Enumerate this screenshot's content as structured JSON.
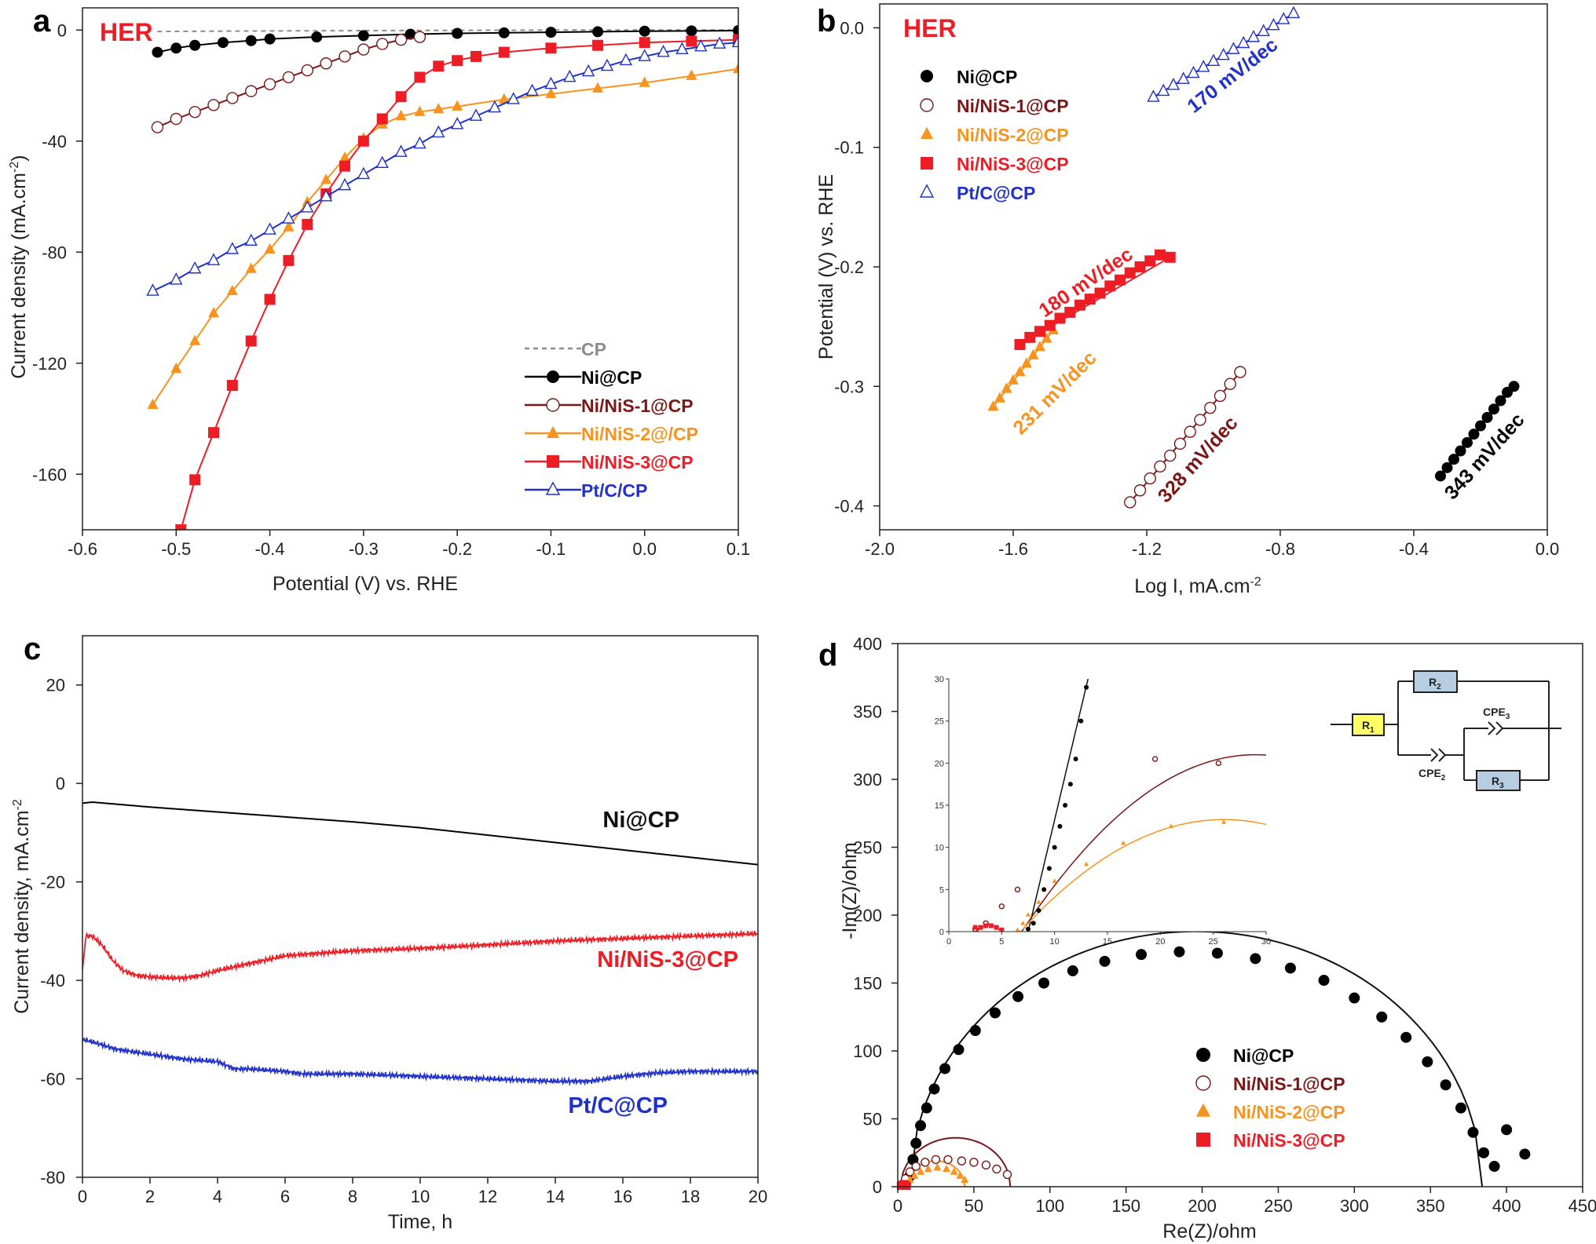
{
  "panels": {
    "a": {
      "letter": "a",
      "tag": "HER",
      "xlabel": "Potential (V) vs. RHE",
      "ylabel": "Current density (mA.cm",
      "ylabel_sup": "-2",
      "ylabel_close": ")",
      "xticks": [
        "-0.6",
        "-0.5",
        "-0.4",
        "-0.3",
        "-0.2",
        "-0.1",
        "0.0",
        "0.1"
      ],
      "yticks": [
        "0",
        "-40",
        "-80",
        "-120",
        "-160"
      ],
      "legend": [
        "CP",
        "Ni@CP",
        "Ni/NiS-1@CP",
        "Ni/NiS-2@/CP",
        "Ni/NiS-3@CP",
        "Pt/C/CP"
      ]
    },
    "b": {
      "letter": "b",
      "tag": "HER",
      "xlabel": "Log I, mA.cm",
      "xlabel_sup": "-2",
      "ylabel": "Potential (V) vs. RHE",
      "xticks": [
        "-2.0",
        "-1.6",
        "-1.2",
        "-0.8",
        "-0.4",
        "0.0"
      ],
      "yticks": [
        "0.0",
        "-0.1",
        "-0.2",
        "-0.3",
        "-0.4"
      ],
      "legend": [
        "Ni@CP",
        "Ni/NiS-1@CP",
        "Ni/NiS-2@CP",
        "Ni/NiS-3@CP",
        "Pt/C@CP"
      ],
      "slopes": [
        "170 mV/dec",
        "180 mV/dec",
        "231 mV/dec",
        "328 mV/dec",
        "343 mV/dec"
      ]
    },
    "c": {
      "letter": "c",
      "xlabel": "Time, h",
      "ylabel": "Current density, mA.cm",
      "ylabel_sup": "-2",
      "xticks": [
        "0",
        "2",
        "4",
        "6",
        "8",
        "10",
        "12",
        "14",
        "16",
        "18",
        "20"
      ],
      "yticks": [
        "20",
        "0",
        "-20",
        "-40",
        "-60",
        "-80"
      ],
      "labels": [
        "Ni@CP",
        "Ni/NiS-3@CP",
        "Pt/C@CP"
      ]
    },
    "d": {
      "letter": "d",
      "xlabel": "Re(Z)/ohm",
      "ylabel": "-Im(Z)/ohm",
      "xticks": [
        "0",
        "50",
        "100",
        "150",
        "200",
        "250",
        "300",
        "350",
        "400",
        "450"
      ],
      "yticks": [
        "0",
        "50",
        "100",
        "150",
        "200",
        "250",
        "300",
        "350",
        "400"
      ],
      "legend": [
        "Ni@CP",
        "Ni/NiS-1@CP",
        "Ni/NiS-2@CP",
        "Ni/NiS-3@CP"
      ],
      "inset_xticks": [
        "0",
        "5",
        "10",
        "15",
        "20",
        "25",
        "30"
      ],
      "inset_yticks": [
        "0",
        "5",
        "10",
        "15",
        "20",
        "25",
        "30"
      ],
      "circuit": {
        "r1": "R",
        "r1_sub": "1",
        "r2": "R",
        "r2_sub": "2",
        "r3": "R",
        "r3_sub": "3",
        "cpe2": "CPE",
        "cpe2_sub": "2",
        "cpe3": "CPE",
        "cpe3_sub": "3"
      }
    }
  },
  "colors": {
    "cp": "#8c8c8c",
    "ni": "#000000",
    "nis1": "#7a1717",
    "nis2": "#f7931e",
    "nis3": "#ee1c24",
    "ptc": "#1f31c9",
    "her": "#ee1c24",
    "axis": "#222222"
  },
  "chart_data": [
    {
      "panel": "a",
      "type": "line",
      "title": "HER",
      "xlabel": "Potential (V) vs. RHE",
      "ylabel": "Current density (mA.cm-2)",
      "xlim": [
        -0.6,
        0.1
      ],
      "ylim": [
        -180,
        8
      ],
      "legend_position": "bottom-right",
      "series": [
        {
          "name": "CP",
          "style": "dashed",
          "x": [
            -0.52,
            -0.4,
            -0.3,
            -0.2,
            -0.1,
            0.0,
            0.1
          ],
          "y": [
            -0.5,
            -0.3,
            -0.2,
            -0.1,
            0,
            0,
            0
          ]
        },
        {
          "name": "Ni@CP",
          "x": [
            -0.52,
            -0.5,
            -0.48,
            -0.45,
            -0.42,
            -0.4,
            -0.35,
            -0.3,
            -0.25,
            -0.2,
            -0.15,
            -0.1,
            -0.05,
            0.0,
            0.05,
            0.1
          ],
          "y": [
            -8,
            -6.5,
            -5.5,
            -4.5,
            -3.8,
            -3.2,
            -2.5,
            -2,
            -1.5,
            -1.2,
            -1,
            -0.8,
            -0.6,
            -0.4,
            -0.3,
            -0.2
          ]
        },
        {
          "name": "Ni/NiS-1@CP",
          "x": [
            -0.52,
            -0.5,
            -0.48,
            -0.46,
            -0.44,
            -0.42,
            -0.4,
            -0.38,
            -0.36,
            -0.34,
            -0.32,
            -0.3,
            -0.28,
            -0.26,
            -0.24
          ],
          "y": [
            -35,
            -32,
            -29.5,
            -27,
            -24.5,
            -22,
            -19.5,
            -17,
            -14.5,
            -12,
            -9.5,
            -7,
            -5,
            -3.5,
            -2.5
          ]
        },
        {
          "name": "Ni/NiS-2@/CP",
          "x": [
            -0.525,
            -0.5,
            -0.48,
            -0.46,
            -0.44,
            -0.42,
            -0.4,
            -0.38,
            -0.36,
            -0.34,
            -0.32,
            -0.3,
            -0.28,
            -0.26,
            -0.24,
            -0.22,
            -0.2,
            -0.15,
            -0.1,
            -0.05,
            0.0,
            0.05,
            0.1
          ],
          "y": [
            -135,
            -122,
            -112,
            -102,
            -94,
            -86,
            -79,
            -71,
            -62,
            -54,
            -46,
            -39,
            -34,
            -31,
            -29.5,
            -28.5,
            -27.5,
            -25,
            -23,
            -21,
            -19,
            -16.5,
            -14
          ]
        },
        {
          "name": "Ni/NiS-3@CP",
          "x": [
            -0.495,
            -0.48,
            -0.46,
            -0.44,
            -0.42,
            -0.4,
            -0.38,
            -0.36,
            -0.34,
            -0.32,
            -0.3,
            -0.28,
            -0.26,
            -0.24,
            -0.22,
            -0.2,
            -0.18,
            -0.15,
            -0.1,
            -0.05,
            0.0,
            0.05,
            0.1
          ],
          "y": [
            -180,
            -162,
            -145,
            -128,
            -112,
            -97,
            -83,
            -70,
            -59,
            -49,
            -40,
            -32,
            -24,
            -17,
            -13,
            -11,
            -9.5,
            -8,
            -6.5,
            -5.5,
            -4.5,
            -4,
            -3.5
          ]
        },
        {
          "name": "Pt/C/CP",
          "x": [
            -0.525,
            -0.5,
            -0.48,
            -0.46,
            -0.44,
            -0.42,
            -0.4,
            -0.38,
            -0.36,
            -0.34,
            -0.32,
            -0.3,
            -0.28,
            -0.26,
            -0.24,
            -0.22,
            -0.2,
            -0.18,
            -0.16,
            -0.14,
            -0.12,
            -0.1,
            -0.08,
            -0.06,
            -0.04,
            -0.02,
            0.0,
            0.02,
            0.04,
            0.06,
            0.08,
            0.1
          ],
          "y": [
            -94,
            -90,
            -86,
            -83,
            -79,
            -76,
            -72,
            -68,
            -64,
            -60,
            -56,
            -52,
            -48,
            -44,
            -41,
            -37,
            -34,
            -31,
            -28,
            -25,
            -22,
            -19.5,
            -17,
            -15,
            -13,
            -11,
            -9.5,
            -8,
            -7,
            -6,
            -5,
            -4.5
          ]
        }
      ]
    },
    {
      "panel": "b",
      "type": "scatter",
      "title": "HER",
      "xlabel": "Log I, mA.cm-2",
      "ylabel": "Potential (V) vs. RHE",
      "xlim": [
        -2.0,
        0.0
      ],
      "ylim": [
        -0.42,
        0.02
      ],
      "legend_position": "top-left",
      "series": [
        {
          "name": "Ni@CP",
          "slope_label": "343 mV/dec",
          "x": [
            -0.32,
            -0.3,
            -0.28,
            -0.26,
            -0.24,
            -0.22,
            -0.2,
            -0.18,
            -0.16,
            -0.14,
            -0.12,
            -0.1
          ],
          "y": [
            -0.375,
            -0.368,
            -0.361,
            -0.354,
            -0.347,
            -0.34,
            -0.333,
            -0.326,
            -0.319,
            -0.312,
            -0.305,
            -0.3
          ]
        },
        {
          "name": "Ni/NiS-1@CP",
          "slope_label": "328 mV/dec",
          "x": [
            -1.25,
            -1.22,
            -1.19,
            -1.16,
            -1.13,
            -1.1,
            -1.07,
            -1.04,
            -1.01,
            -0.98,
            -0.95,
            -0.92
          ],
          "y": [
            -0.397,
            -0.387,
            -0.377,
            -0.367,
            -0.358,
            -0.348,
            -0.338,
            -0.328,
            -0.318,
            -0.308,
            -0.298,
            -0.288
          ]
        },
        {
          "name": "Ni/NiS-2@CP",
          "slope_label": "231 mV/dec",
          "x": [
            -1.66,
            -1.64,
            -1.62,
            -1.6,
            -1.58,
            -1.56,
            -1.54,
            -1.52,
            -1.5,
            -1.48
          ],
          "y": [
            -0.317,
            -0.31,
            -0.302,
            -0.295,
            -0.288,
            -0.281,
            -0.274,
            -0.267,
            -0.26,
            -0.253
          ]
        },
        {
          "name": "Ni/NiS-3@CP",
          "slope_label": "180 mV/dec",
          "x": [
            -1.58,
            -1.55,
            -1.52,
            -1.49,
            -1.46,
            -1.43,
            -1.4,
            -1.37,
            -1.34,
            -1.31,
            -1.28,
            -1.25,
            -1.22,
            -1.19,
            -1.16,
            -1.13
          ],
          "y": [
            -0.265,
            -0.259,
            -0.254,
            -0.249,
            -0.243,
            -0.238,
            -0.232,
            -0.227,
            -0.222,
            -0.216,
            -0.211,
            -0.205,
            -0.2,
            -0.195,
            -0.19,
            -0.192
          ]
        },
        {
          "name": "Pt/C@CP",
          "slope_label": "170 mV/dec",
          "x": [
            -1.18,
            -1.15,
            -1.12,
            -1.09,
            -1.06,
            -1.03,
            -1.0,
            -0.97,
            -0.94,
            -0.91,
            -0.88,
            -0.85,
            -0.82,
            -0.79,
            -0.76
          ],
          "y": [
            -0.058,
            -0.053,
            -0.048,
            -0.043,
            -0.038,
            -0.033,
            -0.028,
            -0.023,
            -0.018,
            -0.013,
            -0.008,
            -0.003,
            0.002,
            0.007,
            0.012
          ]
        }
      ]
    },
    {
      "panel": "c",
      "type": "line",
      "xlabel": "Time, h",
      "ylabel": "Current density, mA.cm-2",
      "xlim": [
        0,
        20
      ],
      "ylim": [
        -80,
        30
      ],
      "series": [
        {
          "name": "Ni@CP",
          "x": [
            0,
            0.3,
            2,
            4,
            6,
            8,
            10,
            12,
            14,
            16,
            18,
            20
          ],
          "y": [
            -4,
            -3.8,
            -4.8,
            -5.8,
            -6.8,
            -7.8,
            -9,
            -10.5,
            -12,
            -13.5,
            -15,
            -16.5
          ]
        },
        {
          "name": "Ni/NiS-3@CP",
          "x": [
            0,
            0.1,
            0.3,
            0.6,
            0.9,
            1.2,
            1.6,
            2,
            2.5,
            3,
            3.5,
            4,
            5,
            6,
            7,
            8,
            10,
            12,
            14,
            16,
            18,
            20
          ],
          "y": [
            -38,
            -31,
            -31,
            -33,
            -36,
            -38,
            -39,
            -39.3,
            -39.5,
            -39.5,
            -39,
            -38,
            -36.5,
            -35,
            -34.5,
            -34,
            -33.5,
            -32.8,
            -32,
            -31.5,
            -31,
            -30.5
          ]
        },
        {
          "name": "Pt/C@CP",
          "x": [
            0,
            0.3,
            1,
            2,
            3,
            4,
            4.5,
            5,
            6,
            6.5,
            8,
            10,
            12,
            14,
            15,
            16,
            17,
            18,
            19,
            20
          ],
          "y": [
            -52,
            -52.5,
            -54,
            -55,
            -56,
            -56.5,
            -58,
            -58,
            -58.5,
            -59,
            -59,
            -59.5,
            -60,
            -60.5,
            -60.5,
            -59.5,
            -58.8,
            -58.5,
            -58.5,
            -58.5
          ]
        }
      ]
    },
    {
      "panel": "d",
      "type": "scatter",
      "xlabel": "Re(Z)/ohm",
      "ylabel": "-Im(Z)/ohm",
      "xlim": [
        0,
        450
      ],
      "ylim": [
        0,
        400
      ],
      "legend_position": "bottom-right",
      "series": [
        {
          "name": "Ni@CP",
          "x": [
            8,
            10,
            12,
            15,
            19,
            24,
            31,
            40,
            51,
            64,
            79,
            96,
            115,
            136,
            160,
            185,
            210,
            235,
            258,
            280,
            300,
            318,
            334,
            348,
            360,
            370,
            378,
            385,
            392,
            400,
            412
          ],
          "y": [
            8,
            20,
            32,
            45,
            58,
            72,
            87,
            101,
            115,
            128,
            140,
            150,
            159,
            166,
            171,
            173,
            172,
            168,
            161,
            152,
            139,
            125,
            110,
            92,
            75,
            58,
            40,
            25,
            15,
            42,
            24
          ]
        },
        {
          "name": "Ni/NiS-1@CP",
          "x": [
            3,
            5,
            8,
            12,
            18,
            25,
            33,
            42,
            50,
            58,
            65,
            72
          ],
          "y": [
            2,
            6,
            11,
            15,
            18,
            20,
            20,
            19,
            18,
            16,
            13,
            9
          ]
        },
        {
          "name": "Ni/NiS-2@CP",
          "x": [
            6,
            8,
            11,
            15,
            20,
            26,
            32,
            37,
            41,
            44
          ],
          "y": [
            2,
            5,
            8,
            11,
            13,
            14,
            13,
            11,
            8,
            5
          ]
        },
        {
          "name": "Ni/NiS-3@CP",
          "x": [
            2,
            3,
            4,
            5,
            6
          ],
          "y": [
            0.5,
            1.5,
            2,
            1.5,
            0.5
          ]
        }
      ],
      "inset": {
        "xlim": [
          0,
          30
        ],
        "ylim": [
          0,
          30
        ],
        "series": [
          {
            "name": "Ni@CP",
            "x": [
              7.5,
              8,
              8.5,
              9,
              9.5,
              10,
              10.5,
              11,
              11.5,
              12,
              12.5,
              13
            ],
            "y": [
              0.3,
              1,
              2.5,
              5,
              7.5,
              10,
              12.5,
              15,
              17.5,
              20.5,
              25,
              29
            ]
          },
          {
            "name": "Ni/NiS-1@CP",
            "x": [
              2.5,
              3.5,
              5,
              6.5,
              19.5,
              25.5
            ],
            "y": [
              0.3,
              1,
              3,
              5,
              20.5,
              20
            ]
          },
          {
            "name": "Ni/NiS-2@CP",
            "x": [
              6.5,
              7,
              7.5,
              8.5,
              10,
              13,
              16.5,
              21,
              26
            ],
            "y": [
              0.2,
              1,
              2,
              3.5,
              6,
              8,
              10.5,
              12.5,
              13
            ]
          },
          {
            "name": "Ni/NiS-3@CP",
            "x": [
              2.5,
              3,
              3.5,
              4,
              4.5,
              5
            ],
            "y": [
              0.5,
              0.5,
              0.7,
              0.7,
              0.5,
              0.2
            ]
          }
        ]
      }
    }
  ]
}
